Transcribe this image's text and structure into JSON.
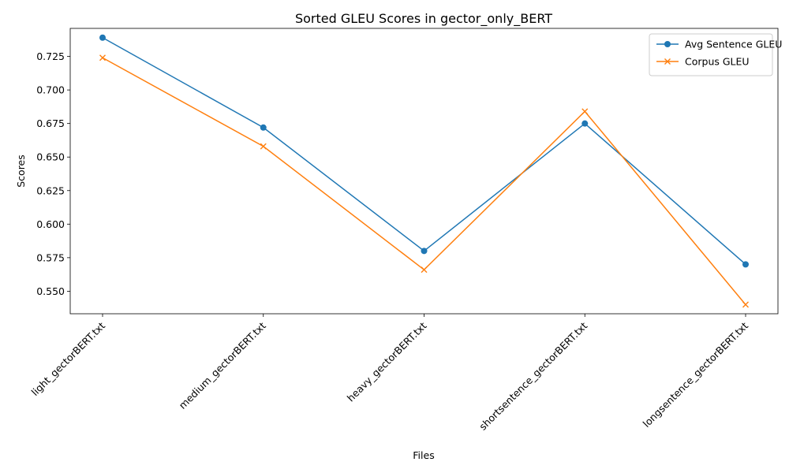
{
  "chart_data": {
    "type": "line",
    "title": "Sorted GLEU Scores in gector_only_BERT",
    "xlabel": "Files",
    "ylabel": "Scores",
    "categories": [
      "light_gectorBERT.txt",
      "medium_gectorBERT.txt",
      "heavy_gectorBERT.txt",
      "shortsentence_gectorBERT.txt",
      "longsentence_gectorBERT.txt"
    ],
    "series": [
      {
        "name": "Avg Sentence GLEU",
        "values": [
          0.739,
          0.672,
          0.58,
          0.675,
          0.57
        ],
        "color": "#1f77b4",
        "marker": "circle"
      },
      {
        "name": "Corpus GLEU",
        "values": [
          0.724,
          0.658,
          0.566,
          0.684,
          0.54
        ],
        "color": "#ff7f0e",
        "marker": "x"
      }
    ],
    "ylim": [
      0.5332,
      0.7459
    ],
    "yticks": [
      "0.550",
      "0.575",
      "0.600",
      "0.625",
      "0.650",
      "0.675",
      "0.700",
      "0.725"
    ],
    "grid": false,
    "legend_position": "top-right"
  }
}
